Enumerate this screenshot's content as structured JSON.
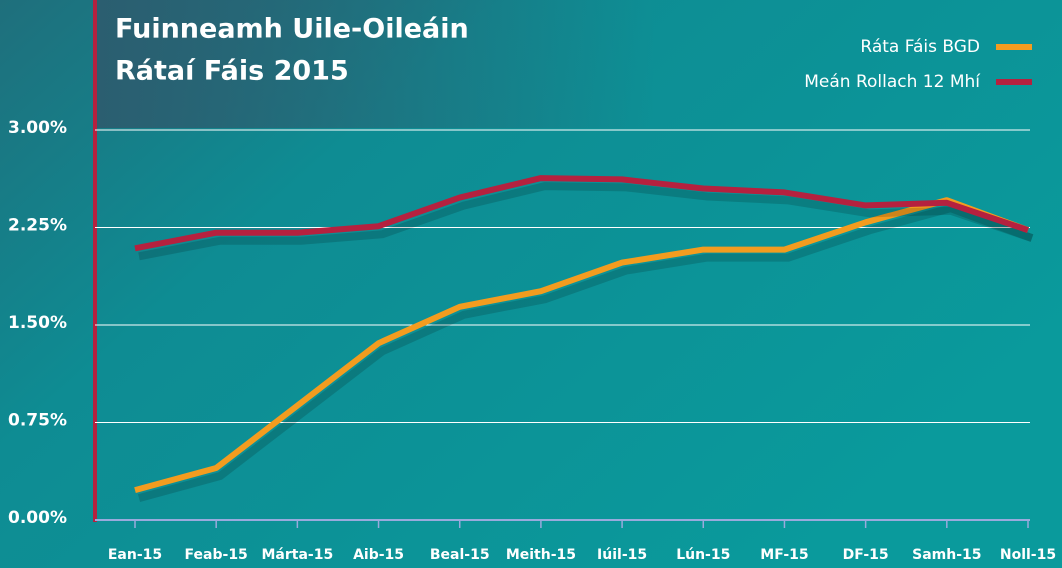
{
  "chart_data": {
    "type": "line",
    "title": [
      "Fuinneamh Uile-Oileáin",
      "Rátaí Fáis 2015"
    ],
    "categories": [
      "Ean-15",
      "Feab-15",
      "Márta-15",
      "Aib-15",
      "Beal-15",
      "Meith-15",
      "Iúil-15",
      "Lún-15",
      "MF-15",
      "DF-15",
      "Samh-15",
      "Noll-15"
    ],
    "series": [
      {
        "name": "Ráta Fáis BGD",
        "color": "#f39c1f",
        "values": [
          0.23,
          0.4,
          0.88,
          1.36,
          1.64,
          1.76,
          1.98,
          2.08,
          2.08,
          2.29,
          2.46,
          2.23
        ]
      },
      {
        "name": "Meán Rollach 12 Mhí",
        "color": "#b5213f",
        "values": [
          2.09,
          2.21,
          2.21,
          2.26,
          2.48,
          2.63,
          2.62,
          2.55,
          2.52,
          2.42,
          2.44,
          2.23
        ]
      }
    ],
    "ylim": [
      0,
      3
    ],
    "yticks": [
      {
        "value": 0,
        "label": "0.00%"
      },
      {
        "value": 0.75,
        "label": "0.75%"
      },
      {
        "value": 1.5,
        "label": "1.50%"
      },
      {
        "value": 2.25,
        "label": "2.25%"
      },
      {
        "value": 3,
        "label": "3.00%"
      }
    ],
    "grid": true,
    "legend": "top-right"
  }
}
